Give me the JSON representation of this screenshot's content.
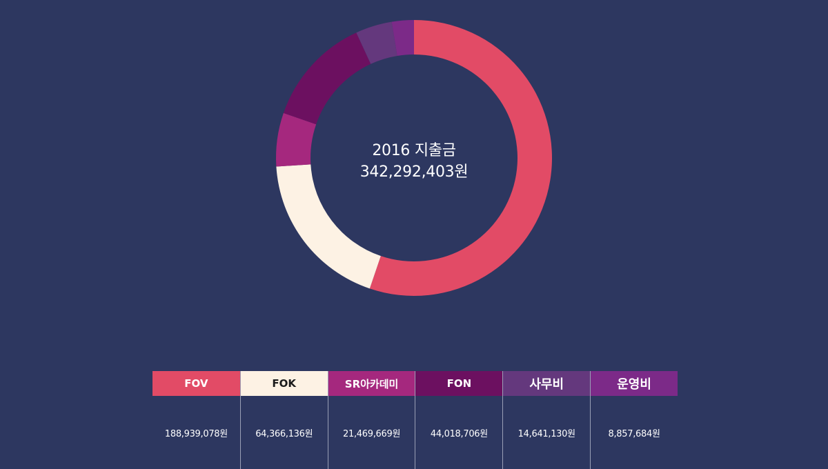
{
  "chart_data": {
    "type": "pie",
    "title": "2016 지출금",
    "total_label": "342,292,403원",
    "categories": [
      "FOV",
      "FOK",
      "SR아카데미",
      "FON",
      "사무비",
      "운영비"
    ],
    "values": [
      188939078,
      64366136,
      21469669,
      44018706,
      14641130,
      8857684
    ],
    "value_labels": [
      "188,939,078원",
      "64,366,136원",
      "21,469,669원",
      "44,018,706원",
      "14,641,130원",
      "8,857,684원"
    ],
    "colors": [
      "#e24b66",
      "#fdf2e4",
      "#a5287e",
      "#6c1060",
      "#64387d",
      "#7c2a88"
    ],
    "legend_text_colors": [
      "#ffffff",
      "#1a1a1a",
      "#ffffff",
      "#ffffff",
      "#ffffff",
      "#ffffff"
    ]
  }
}
